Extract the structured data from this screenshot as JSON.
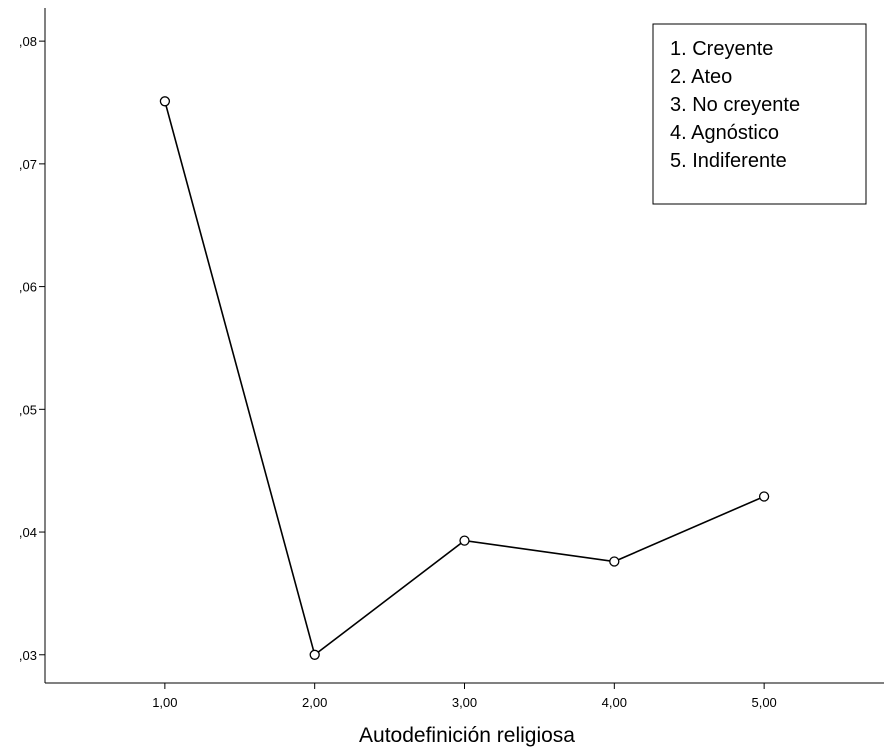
{
  "chart_data": {
    "type": "line",
    "title": "",
    "xlabel": "Autodefinición religiosa",
    "ylabel": "",
    "x": [
      1,
      2,
      3,
      4,
      5
    ],
    "x_tick_labels": [
      "1,00",
      "2,00",
      "3,00",
      "4,00",
      "5,00"
    ],
    "xlim": [
      0.2,
      5.8
    ],
    "y_ticks": [
      0.03,
      0.04,
      0.05,
      0.06,
      0.07,
      0.08
    ],
    "y_tick_labels": [
      ",03",
      ",04",
      ",05",
      ",06",
      ",07",
      ",08"
    ],
    "ylim": [
      0.0277,
      0.0827
    ],
    "series": [
      {
        "values": [
          0.0751,
          0.03,
          0.0393,
          0.0376,
          0.0429
        ],
        "color": "#000000",
        "marker": "open-circle"
      }
    ],
    "grid": false,
    "legend": {
      "placement": "top-right",
      "entries": [
        "1. Creyente",
        "2. Ateo",
        "3. No creyente",
        "4. Agnóstico",
        "5. Indiferente"
      ]
    }
  }
}
